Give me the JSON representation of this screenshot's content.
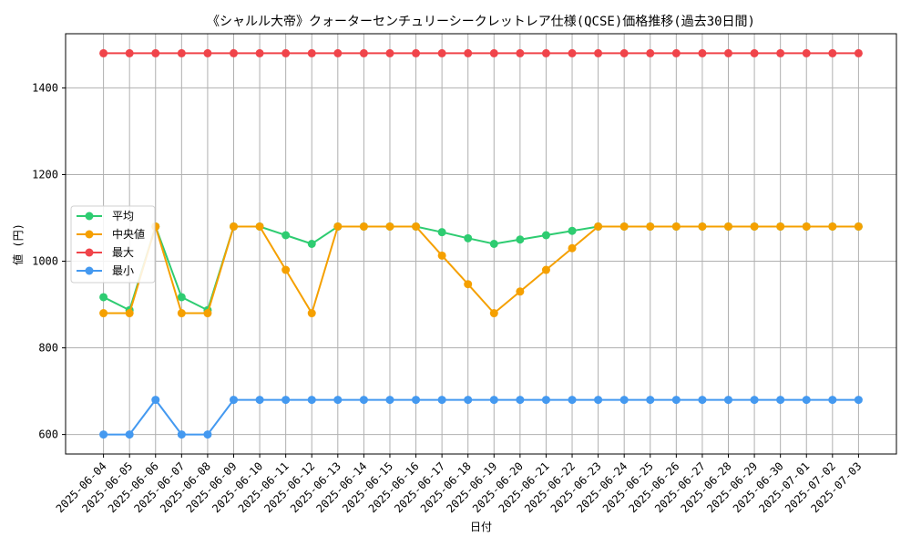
{
  "chart_data": {
    "type": "line",
    "title": "《シャルル大帝》クォーターセンチュリーシークレットレア仕様(QCSE)価格推移(過去30日間)",
    "xlabel": "日付",
    "ylabel": "値 (円)",
    "ylim": [
      555,
      1525
    ],
    "yticks": [
      600,
      800,
      1000,
      1200,
      1400
    ],
    "grid": true,
    "legend_position": "center-left",
    "categories": [
      "2025-06-04",
      "2025-06-05",
      "2025-06-06",
      "2025-06-07",
      "2025-06-08",
      "2025-06-09",
      "2025-06-10",
      "2025-06-11",
      "2025-06-12",
      "2025-06-13",
      "2025-06-14",
      "2025-06-15",
      "2025-06-16",
      "2025-06-17",
      "2025-06-18",
      "2025-06-19",
      "2025-06-20",
      "2025-06-21",
      "2025-06-22",
      "2025-06-23",
      "2025-06-24",
      "2025-06-25",
      "2025-06-26",
      "2025-06-27",
      "2025-06-28",
      "2025-06-29",
      "2025-06-30",
      "2025-07-01",
      "2025-07-02",
      "2025-07-03"
    ],
    "series": [
      {
        "name": "平均",
        "color": "#2ecc71",
        "values": [
          917,
          887,
          1080,
          917,
          887,
          1080,
          1080,
          1060,
          1040,
          1080,
          1080,
          1080,
          1080,
          1067,
          1053,
          1040,
          1050,
          1060,
          1070,
          1080,
          1080,
          1080,
          1080,
          1080,
          1080,
          1080,
          1080,
          1080,
          1080,
          1080
        ]
      },
      {
        "name": "中央値",
        "color": "#f5a000",
        "values": [
          880,
          880,
          1080,
          880,
          880,
          1080,
          1080,
          980,
          880,
          1080,
          1080,
          1080,
          1080,
          1013,
          947,
          880,
          930,
          980,
          1030,
          1080,
          1080,
          1080,
          1080,
          1080,
          1080,
          1080,
          1080,
          1080,
          1080,
          1080
        ]
      },
      {
        "name": "最大",
        "color": "#f0444a",
        "values": [
          1480,
          1480,
          1480,
          1480,
          1480,
          1480,
          1480,
          1480,
          1480,
          1480,
          1480,
          1480,
          1480,
          1480,
          1480,
          1480,
          1480,
          1480,
          1480,
          1480,
          1480,
          1480,
          1480,
          1480,
          1480,
          1480,
          1480,
          1480,
          1480,
          1480
        ]
      },
      {
        "name": "最小",
        "color": "#4499f0",
        "values": [
          600,
          600,
          680,
          600,
          600,
          680,
          680,
          680,
          680,
          680,
          680,
          680,
          680,
          680,
          680,
          680,
          680,
          680,
          680,
          680,
          680,
          680,
          680,
          680,
          680,
          680,
          680,
          680,
          680,
          680
        ]
      }
    ]
  }
}
